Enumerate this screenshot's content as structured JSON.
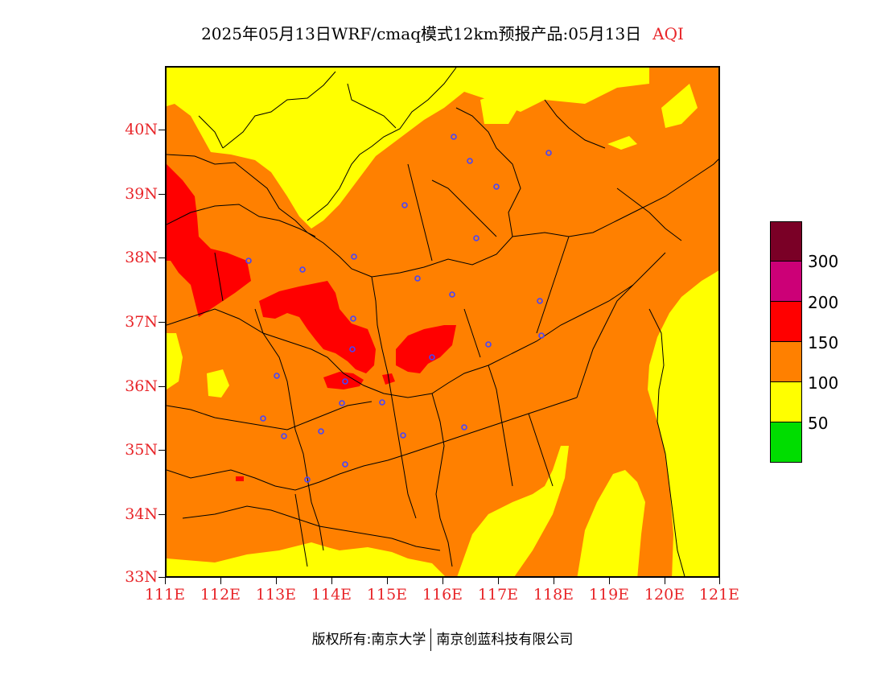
{
  "title": {
    "text": "2025年05月13日WRF/cmaq模式12km预报产品:05月13日",
    "variable": "AQI"
  },
  "map": {
    "lat_labels": [
      "40N",
      "39N",
      "38N",
      "37N",
      "36N",
      "35N",
      "34N",
      "33N"
    ],
    "lon_labels": [
      "111E",
      "112E",
      "113E",
      "114E",
      "115E",
      "116E",
      "117E",
      "118E",
      "119E",
      "120E",
      "121E"
    ],
    "colors": {
      "band_0_50": "#00dd00",
      "band_50_100": "#ffff00",
      "band_100_150": "#ff8000",
      "band_150_200": "#ff0000",
      "band_200_300": "#cc0077",
      "band_300_plus": "#7a0026",
      "station": "#4444ff"
    }
  },
  "legend": {
    "swatch_colors": [
      "#7a0026",
      "#cc0077",
      "#ff0000",
      "#ff8000",
      "#ffff00",
      "#00dd00"
    ],
    "labels": [
      "300",
      "200",
      "150",
      "100",
      "50"
    ]
  },
  "credit": {
    "left": "版权所有:南京大学",
    "right": "南京创蓝科技有限公司"
  }
}
